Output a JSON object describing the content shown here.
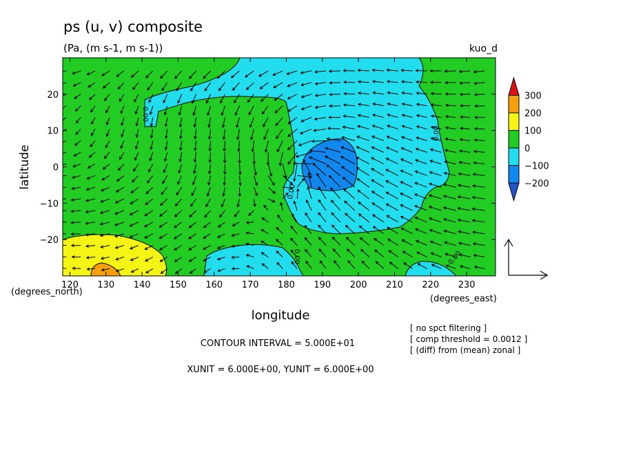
{
  "chart_data": {
    "type": "contour-vector",
    "title": "ps (u, v) composite",
    "subtitle": "(Pa, (m s-1, m s-1))",
    "run_label": "kuo_d",
    "xlabel": "longitude",
    "ylabel": "latitude",
    "x_unit_label": "(degrees_east)",
    "y_unit_label": "(degrees_north)",
    "xlim": [
      118,
      238
    ],
    "ylim": [
      -30,
      30
    ],
    "x_ticks": [
      120,
      130,
      140,
      150,
      160,
      170,
      180,
      190,
      200,
      210,
      220,
      230
    ],
    "y_ticks": [
      20,
      10,
      0,
      -10,
      -20
    ],
    "y_tick_labels": [
      "20",
      "10",
      "0",
      "−10",
      "−20"
    ],
    "colorbar": {
      "labels": [
        "300",
        "200",
        "100",
        "0",
        "−100",
        "−200"
      ],
      "colors": [
        "#dd1111",
        "#f5a00a",
        "#f5f515",
        "#22cc22",
        "#22ddee",
        "#1188ee",
        "#2255cc"
      ]
    },
    "contour_labels": [
      "0.00",
      "0.00",
      "0.00",
      "0.00",
      "0.00"
    ],
    "info": {
      "contour_interval": "CONTOUR INTERVAL = 5.000E+01",
      "units": "XUNIT = 6.000E+00, YUNIT = 6.000E+00",
      "notes": [
        "[ no spct filtering ]",
        "[ comp threshold = 0.0012 ]",
        "[ (diff) from (mean) zonal ]"
      ]
    },
    "vector_field": {
      "vortex_center": [
        185,
        -1
      ]
    }
  }
}
